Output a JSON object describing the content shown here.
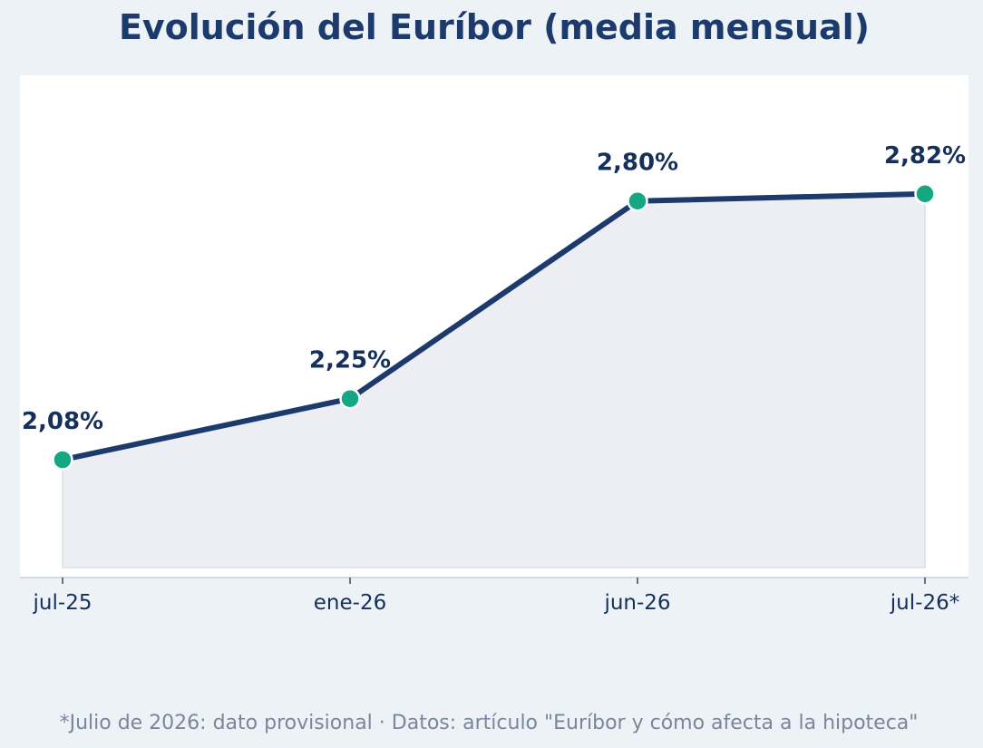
{
  "title": "Evolución del Euríbor (media mensual)",
  "footnote": "*Julio de 2026: dato provisional  ·  Datos: artículo \"Euríbor y cómo afecta a la hipoteca\"",
  "colors": {
    "background": "#edf2f7",
    "plot_area": "#ffffff",
    "line": "#1c3a6b",
    "marker": "#13a882",
    "area_fill": "#eceef3",
    "label": "#15305a",
    "footnote": "#7a869c"
  },
  "chart_data": {
    "type": "line",
    "categories": [
      "jul-25",
      "ene-26",
      "jun-26",
      "jul-26*"
    ],
    "values": [
      2.08,
      2.25,
      2.8,
      2.82
    ],
    "data_labels": [
      "2,08%",
      "2,25%",
      "2,80%",
      "2,82%"
    ],
    "title": "Evolución del Euríbor (media mensual)",
    "xlabel": "",
    "ylabel": "",
    "ylim": [
      1.78,
      3.15
    ],
    "grid": false,
    "area_fill": true,
    "markers": true,
    "legend": "none"
  }
}
